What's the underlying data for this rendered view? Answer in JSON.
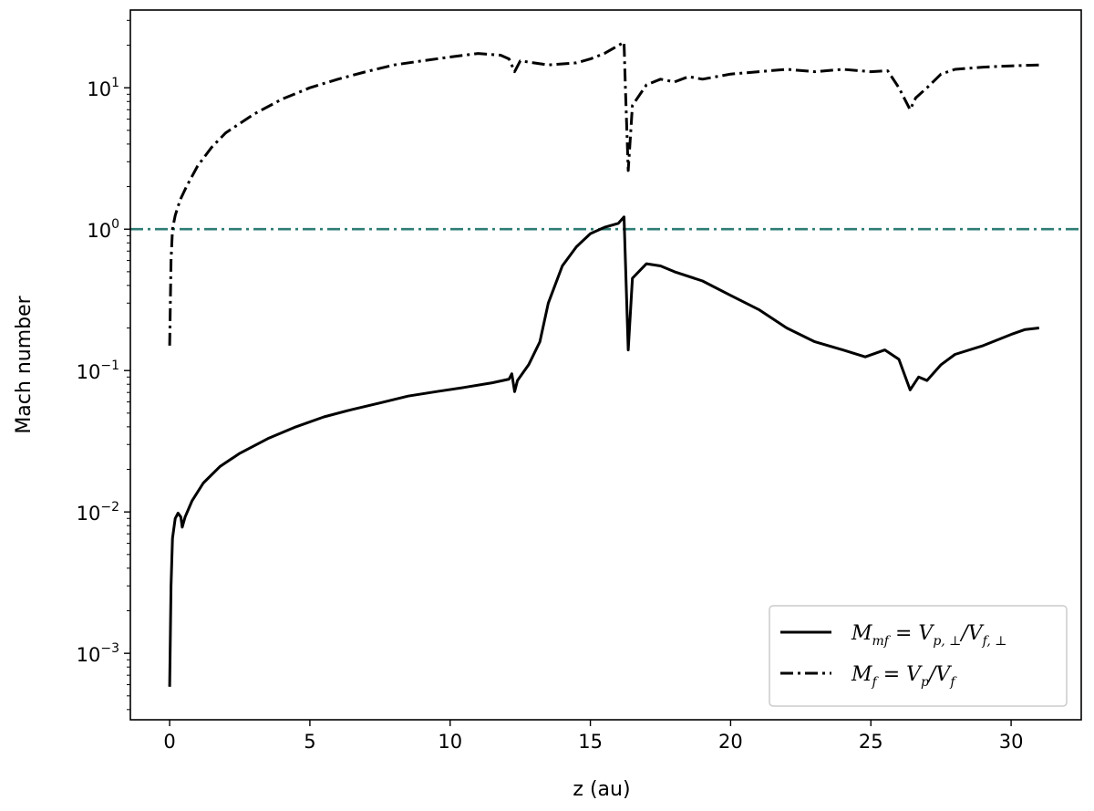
{
  "chart_data": {
    "type": "line",
    "xlabel": "z (au)",
    "ylabel": "Mach number",
    "xlim": [
      -1.4,
      32.5
    ],
    "ylim_log10": [
      -3.47,
      1.55
    ],
    "yscale": "log",
    "grid": false,
    "legend_position": "bottom-right",
    "x_ticks": [
      0,
      5,
      10,
      15,
      20,
      25,
      30
    ],
    "x_tick_labels": [
      "0",
      "5",
      "10",
      "15",
      "20",
      "25",
      "30"
    ],
    "y_ticks": [
      {
        "value": 0.001,
        "base": "10",
        "exp": "−3"
      },
      {
        "value": 0.01,
        "base": "10",
        "exp": "−2"
      },
      {
        "value": 0.1,
        "base": "10",
        "exp": "−1"
      },
      {
        "value": 1,
        "base": "10",
        "exp": "0"
      },
      {
        "value": 10,
        "base": "10",
        "exp": "1"
      }
    ],
    "reference_line": {
      "y": 1,
      "color": "#2e7d74",
      "style": "dashdot"
    },
    "series": [
      {
        "name": "M_mf = V_p,⊥ / V_f,⊥",
        "style": "solid",
        "color": "#000000",
        "points": [
          [
            0.0,
            0.00058
          ],
          [
            0.05,
            0.003
          ],
          [
            0.1,
            0.0065
          ],
          [
            0.2,
            0.009
          ],
          [
            0.3,
            0.0098
          ],
          [
            0.4,
            0.0092
          ],
          [
            0.45,
            0.0078
          ],
          [
            0.55,
            0.0092
          ],
          [
            0.8,
            0.012
          ],
          [
            1.2,
            0.016
          ],
          [
            1.8,
            0.021
          ],
          [
            2.5,
            0.026
          ],
          [
            3.5,
            0.033
          ],
          [
            4.5,
            0.04
          ],
          [
            5.5,
            0.047
          ],
          [
            6.5,
            0.053
          ],
          [
            7.5,
            0.059
          ],
          [
            8.5,
            0.066
          ],
          [
            9.5,
            0.071
          ],
          [
            10.5,
            0.076
          ],
          [
            11.5,
            0.082
          ],
          [
            12.1,
            0.087
          ],
          [
            12.2,
            0.095
          ],
          [
            12.3,
            0.071
          ],
          [
            12.4,
            0.085
          ],
          [
            12.8,
            0.11
          ],
          [
            13.2,
            0.16
          ],
          [
            13.5,
            0.3
          ],
          [
            14.0,
            0.55
          ],
          [
            14.5,
            0.75
          ],
          [
            15.0,
            0.93
          ],
          [
            15.5,
            1.03
          ],
          [
            16.0,
            1.1
          ],
          [
            16.2,
            1.22
          ],
          [
            16.25,
            0.6
          ],
          [
            16.35,
            0.14
          ],
          [
            16.5,
            0.45
          ],
          [
            17.0,
            0.57
          ],
          [
            17.5,
            0.55
          ],
          [
            18.0,
            0.5
          ],
          [
            19.0,
            0.43
          ],
          [
            20.0,
            0.34
          ],
          [
            21.0,
            0.27
          ],
          [
            22.0,
            0.2
          ],
          [
            23.0,
            0.16
          ],
          [
            24.0,
            0.14
          ],
          [
            24.8,
            0.125
          ],
          [
            25.5,
            0.14
          ],
          [
            26.0,
            0.12
          ],
          [
            26.4,
            0.073
          ],
          [
            26.7,
            0.09
          ],
          [
            27.0,
            0.085
          ],
          [
            27.5,
            0.11
          ],
          [
            28.0,
            0.13
          ],
          [
            29.0,
            0.15
          ],
          [
            30.0,
            0.18
          ],
          [
            30.5,
            0.195
          ],
          [
            31.0,
            0.2
          ]
        ]
      },
      {
        "name": "M_f = V_p / V_f",
        "style": "dashdot",
        "color": "#000000",
        "points": [
          [
            0.0,
            0.15
          ],
          [
            0.05,
            0.6
          ],
          [
            0.1,
            1.0
          ],
          [
            0.2,
            1.25
          ],
          [
            0.3,
            1.45
          ],
          [
            0.4,
            1.65
          ],
          [
            0.6,
            2.0
          ],
          [
            1.0,
            2.8
          ],
          [
            1.5,
            3.8
          ],
          [
            2.0,
            4.8
          ],
          [
            3.0,
            6.5
          ],
          [
            4.0,
            8.3
          ],
          [
            5.0,
            10.0
          ],
          [
            6.0,
            11.5
          ],
          [
            7.0,
            13.0
          ],
          [
            8.0,
            14.5
          ],
          [
            9.0,
            15.5
          ],
          [
            10.0,
            16.5
          ],
          [
            11.0,
            17.5
          ],
          [
            11.8,
            17.0
          ],
          [
            12.1,
            16.0
          ],
          [
            12.3,
            13.0
          ],
          [
            12.5,
            15.5
          ],
          [
            13.5,
            14.5
          ],
          [
            14.5,
            15.0
          ],
          [
            15.0,
            16.0
          ],
          [
            15.5,
            17.5
          ],
          [
            16.2,
            21.0
          ],
          [
            16.25,
            10.0
          ],
          [
            16.35,
            2.6
          ],
          [
            16.5,
            7.5
          ],
          [
            17.0,
            10.5
          ],
          [
            17.5,
            11.5
          ],
          [
            18.0,
            11.0
          ],
          [
            18.5,
            12.0
          ],
          [
            19.0,
            11.5
          ],
          [
            20.0,
            12.5
          ],
          [
            21.0,
            13.0
          ],
          [
            22.0,
            13.5
          ],
          [
            23.0,
            13.0
          ],
          [
            24.0,
            13.5
          ],
          [
            25.0,
            13.0
          ],
          [
            25.6,
            13.2
          ],
          [
            26.0,
            10.0
          ],
          [
            26.4,
            7.0
          ],
          [
            26.6,
            8.5
          ],
          [
            27.0,
            10.0
          ],
          [
            27.5,
            12.5
          ],
          [
            28.0,
            13.5
          ],
          [
            29.0,
            14.0
          ],
          [
            30.0,
            14.3
          ],
          [
            31.0,
            14.5
          ]
        ]
      }
    ],
    "legend": [
      {
        "style": "solid",
        "label_main": "M",
        "label_sub": "mf",
        "label_rest": " = V",
        "label_sub2": "p, ⊥",
        "label_rest2": "/V",
        "label_sub3": "f, ⊥"
      },
      {
        "style": "dashdot",
        "label_main": "M",
        "label_sub": "f",
        "label_rest": " = V",
        "label_sub2": "p",
        "label_rest2": "/V",
        "label_sub3": "f"
      }
    ]
  }
}
